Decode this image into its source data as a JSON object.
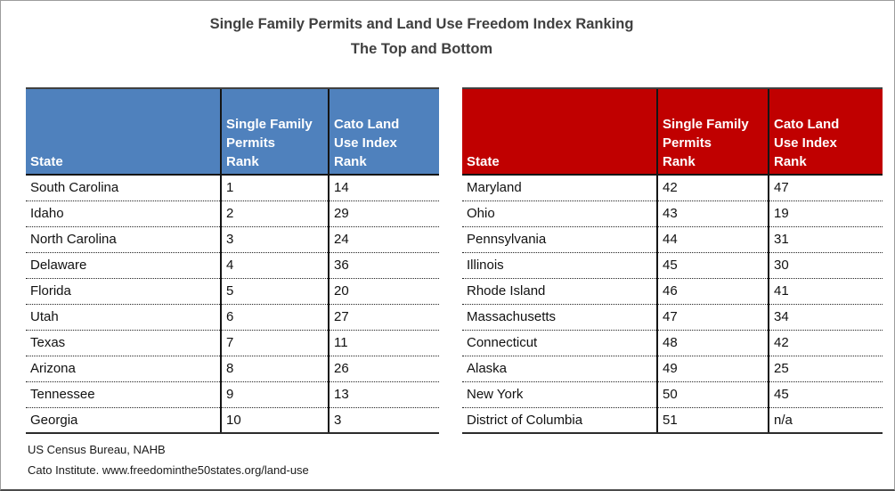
{
  "title": {
    "line1": "Single Family Permits and Land Use Freedom Index Ranking",
    "line2": "The Top and Bottom"
  },
  "tables": [
    {
      "name": "top-ten-states",
      "header_color": "#c00000",
      "header_color_top": "#4f81bd",
      "columns": [
        "State",
        "Single Family\nPermits\nRank",
        "Cato Land\nUse Index\nRank"
      ]
    },
    {
      "name": "bottom-ten-states",
      "header_color": "#c00000",
      "columns": [
        "State",
        "Single Family\nPermits\nRank",
        "Cato Land\nUse Index\nRank"
      ]
    }
  ],
  "footer": {
    "line1": "US Census Bureau, NAHB",
    "line2": "Cato Institute. www.freedominthe50states.org/land-use"
  },
  "chart_data": [
    {
      "type": "table",
      "name": "top_10_states",
      "columns": [
        "State",
        "Single Family Permits Rank",
        "Cato Land Use Index Rank"
      ],
      "rows": [
        [
          "South Carolina",
          1,
          14
        ],
        [
          "Idaho",
          2,
          29
        ],
        [
          "North Carolina",
          3,
          24
        ],
        [
          "Delaware",
          4,
          36
        ],
        [
          "Florida",
          5,
          20
        ],
        [
          "Utah",
          6,
          27
        ],
        [
          "Texas",
          7,
          11
        ],
        [
          "Arizona",
          8,
          26
        ],
        [
          "Tennessee",
          9,
          13
        ],
        [
          "Georgia",
          10,
          3
        ]
      ]
    },
    {
      "type": "table",
      "name": "bottom_10_states",
      "columns": [
        "State",
        "Single Family Permits Rank",
        "Cato Land Use Index Rank"
      ],
      "rows": [
        [
          "Maryland",
          42,
          47
        ],
        [
          "Ohio",
          43,
          19
        ],
        [
          "Pennsylvania",
          44,
          31
        ],
        [
          "Illinois",
          45,
          30
        ],
        [
          "Rhode Island",
          46,
          41
        ],
        [
          "Massachusetts",
          47,
          34
        ],
        [
          "Connecticut",
          48,
          42
        ],
        [
          "Alaska",
          49,
          25
        ],
        [
          "New York",
          50,
          45
        ],
        [
          "District of Columbia",
          51,
          "n/a"
        ]
      ]
    }
  ]
}
